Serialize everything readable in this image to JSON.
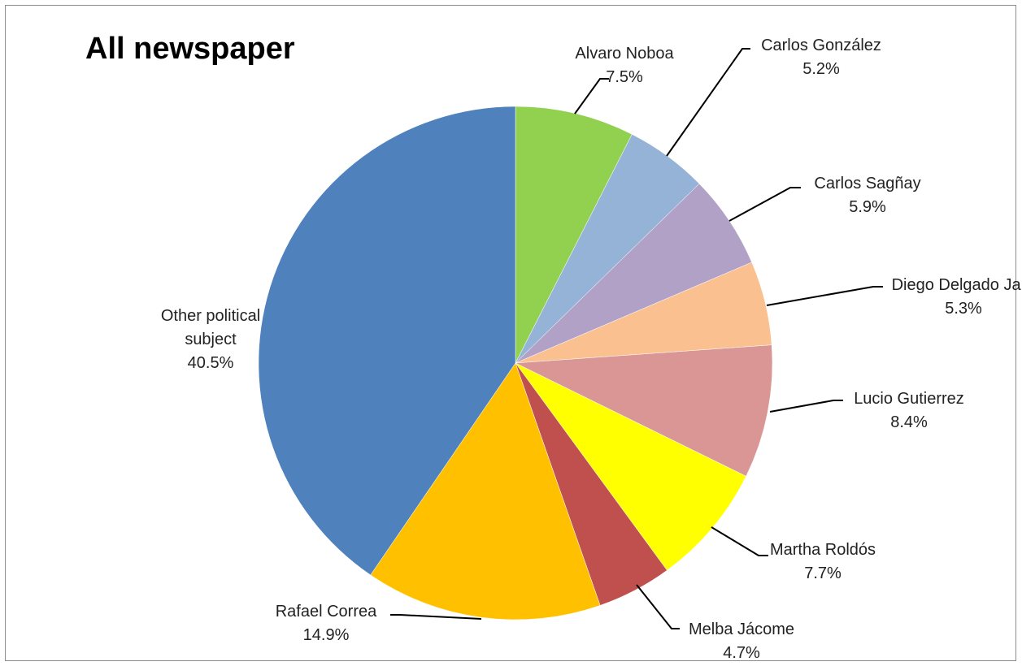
{
  "chart_data": {
    "type": "pie",
    "title": "All newspaper",
    "slices": [
      {
        "label": "Alvaro Noboa",
        "value": 7.5,
        "display": "7.5%",
        "color": "#92D050"
      },
      {
        "label": "Carlos González",
        "value": 5.2,
        "display": "5.2%",
        "color": "#95B3D7"
      },
      {
        "label": "Carlos Sagñay",
        "value": 5.9,
        "display": "5.9%",
        "color": "#B2A1C7"
      },
      {
        "label": "Diego Delgado Jara",
        "value": 5.3,
        "display": "5.3%",
        "color": "#FAC090"
      },
      {
        "label": "Lucio Gutierrez",
        "value": 8.4,
        "display": "8.4%",
        "color": "#D99694"
      },
      {
        "label": "Martha Roldós",
        "value": 7.7,
        "display": "7.7%",
        "color": "#FFFF00"
      },
      {
        "label": "Melba Jácome",
        "value": 4.7,
        "display": "4.7%",
        "color": "#C0504D"
      },
      {
        "label": "Rafael Correa",
        "value": 14.9,
        "display": "14.9%",
        "color": "#FFC000"
      },
      {
        "label": "Other political subject",
        "value": 40.5,
        "display": "40.5%",
        "color": "#4F81BD"
      }
    ],
    "start_angle": "12 o'clock",
    "direction": "clockwise",
    "legend": "none"
  }
}
